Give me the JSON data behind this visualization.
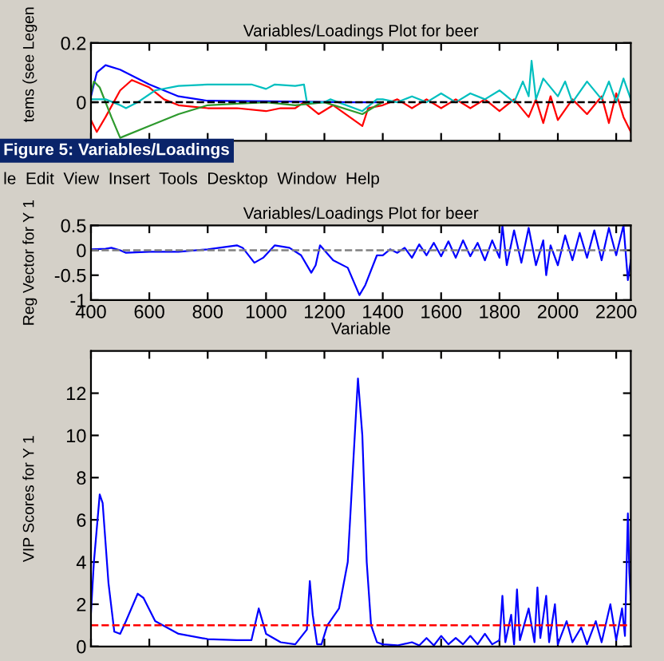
{
  "chart_data": [
    {
      "type": "line",
      "title": "Variables/Loadings Plot for beer",
      "ylabel": "tems (see Legen",
      "xlim": [
        400,
        2250
      ],
      "ylim": [
        -0.13,
        0.2
      ],
      "xticks": [
        {
          "value": 400,
          "label": null
        },
        {
          "value": 600,
          "label": null
        },
        {
          "value": 800,
          "label": null
        },
        {
          "value": 1000,
          "label": null
        },
        {
          "value": 1200,
          "label": null
        },
        {
          "value": 1400,
          "label": null
        },
        {
          "value": 1600,
          "label": null
        },
        {
          "value": 1800,
          "label": null
        },
        {
          "value": 2000,
          "label": null
        },
        {
          "value": 2200,
          "label": null
        }
      ],
      "yticks": [
        0,
        0.2
      ],
      "tick_labels": "y",
      "grid": false,
      "legend": false,
      "ref_lines": [
        {
          "axis": "y",
          "value": 0,
          "color": "#000000",
          "line_style": "dashed"
        }
      ],
      "series": [
        {
          "color": "#0000ff",
          "x": [
            400,
            420,
            450,
            500,
            600,
            700,
            800,
            1000,
            1300,
            1400
          ],
          "values": [
            0.02,
            0.1,
            0.125,
            0.11,
            0.06,
            0.02,
            0.005,
            0.003,
            0,
            0
          ]
        },
        {
          "color": "#ff0000",
          "x": [
            400,
            420,
            450,
            500,
            540,
            600,
            650,
            700,
            800,
            900,
            1000,
            1050,
            1100,
            1130,
            1180,
            1230,
            1330,
            1350,
            1400,
            1450,
            1500,
            1550,
            1600,
            1650,
            1700,
            1750,
            1800,
            1850,
            1900,
            1925,
            1950,
            1975,
            2000,
            2050,
            2100,
            2150,
            2175,
            2200,
            2225,
            2250
          ],
          "values": [
            -0.06,
            -0.1,
            -0.05,
            0.04,
            0.075,
            0.05,
            0.01,
            -0.01,
            -0.02,
            -0.02,
            -0.03,
            -0.02,
            -0.02,
            0,
            -0.04,
            -0.01,
            -0.08,
            -0.02,
            -0.01,
            0.01,
            -0.02,
            0.01,
            -0.02,
            0.01,
            -0.02,
            0.01,
            -0.03,
            0.01,
            -0.05,
            0.01,
            -0.07,
            0.02,
            -0.06,
            0.01,
            -0.04,
            0.02,
            -0.07,
            0.03,
            -0.05,
            -0.1
          ]
        },
        {
          "color": "#2e9a2e",
          "x": [
            400,
            410,
            430,
            470,
            500,
            600,
            700,
            800,
            900,
            1000,
            1100,
            1200,
            1330,
            1380,
            1400
          ],
          "values": [
            0.03,
            0.07,
            0.05,
            -0.05,
            -0.12,
            -0.08,
            -0.04,
            -0.01,
            -0.005,
            0,
            -0.01,
            0,
            -0.04,
            -0.01,
            0
          ]
        },
        {
          "color": "#00bfbf",
          "x": [
            400,
            450,
            500,
            520,
            560,
            620,
            700,
            800,
            900,
            950,
            1000,
            1030,
            1100,
            1130,
            1140,
            1200,
            1220,
            1330,
            1380,
            1400,
            1450,
            1500,
            1550,
            1600,
            1650,
            1700,
            1750,
            1800,
            1850,
            1880,
            1900,
            1910,
            1925,
            1950,
            2000,
            2025,
            2050,
            2100,
            2150,
            2175,
            2200,
            2225,
            2250
          ],
          "values": [
            0.01,
            0.01,
            -0.01,
            -0.02,
            0,
            0.04,
            0.055,
            0.06,
            0.06,
            0.06,
            0.045,
            0.06,
            0.055,
            0.06,
            0,
            0,
            0.01,
            -0.03,
            0.01,
            0.01,
            0,
            0.02,
            0,
            0.03,
            0,
            0.03,
            0.01,
            0.04,
            0,
            0.07,
            0.02,
            0.14,
            0.01,
            0.08,
            0.02,
            0.07,
            0,
            0.07,
            0.01,
            0.07,
            0,
            0.08,
            0.01
          ]
        }
      ]
    },
    {
      "type": "line",
      "title": "Variables/Loadings Plot for beer",
      "xlabel": "Variable",
      "ylabel": "Reg Vector for Y 1",
      "annotations": [
        "Figure 5: Variables/Loadings",
        "le  Edit  View  Insert  Tools  Desktop  Window  Help"
      ],
      "xlim": [
        400,
        2250
      ],
      "ylim": [
        -1,
        0.5
      ],
      "xticks": [
        400,
        600,
        800,
        1000,
        1200,
        1400,
        1600,
        1800,
        2000,
        2200
      ],
      "yticks": [
        -1,
        -0.5,
        0,
        0.5
      ],
      "grid": false,
      "legend": false,
      "ref_lines": [
        {
          "axis": "y",
          "value": 0,
          "color": "#808080",
          "line_style": "dashed"
        }
      ],
      "series": [
        {
          "color": "#0000ff",
          "x": [
            400,
            450,
            470,
            500,
            520,
            600,
            700,
            800,
            900,
            920,
            960,
            990,
            1030,
            1080,
            1120,
            1155,
            1170,
            1185,
            1200,
            1230,
            1280,
            1320,
            1340,
            1380,
            1400,
            1425,
            1450,
            1475,
            1500,
            1525,
            1550,
            1575,
            1600,
            1625,
            1650,
            1675,
            1700,
            1725,
            1750,
            1775,
            1800,
            1810,
            1825,
            1850,
            1875,
            1900,
            1925,
            1950,
            1960,
            1975,
            2000,
            2025,
            2050,
            2075,
            2100,
            2125,
            2150,
            2175,
            2200,
            2225,
            2240,
            2250
          ],
          "values": [
            0.02,
            0.03,
            0.05,
            0,
            -0.05,
            -0.03,
            -0.03,
            0.02,
            0.1,
            0.05,
            -0.25,
            -0.15,
            0.1,
            0.05,
            -0.1,
            -0.45,
            -0.3,
            0.1,
            0,
            -0.2,
            -0.35,
            -0.9,
            -0.7,
            -0.1,
            -0.1,
            0.02,
            -0.05,
            0.05,
            -0.15,
            0.12,
            -0.1,
            0.15,
            -0.12,
            0.18,
            -0.15,
            0.2,
            -0.12,
            0.15,
            -0.2,
            0.2,
            -0.15,
            0.5,
            -0.3,
            0.4,
            -0.25,
            0.45,
            -0.3,
            0.2,
            -0.5,
            0.1,
            -0.3,
            0.3,
            -0.2,
            0.35,
            -0.15,
            0.4,
            -0.2,
            0.45,
            -0.1,
            0.5,
            -0.6,
            -0.2
          ]
        }
      ]
    },
    {
      "type": "line",
      "ylabel": "VIP Scores for Y 1",
      "xlim": [
        400,
        2250
      ],
      "ylim": [
        0,
        14
      ],
      "xticks": [
        {
          "value": 400,
          "label": null
        },
        {
          "value": 600,
          "label": null
        },
        {
          "value": 800,
          "label": null
        },
        {
          "value": 1000,
          "label": null
        },
        {
          "value": 1200,
          "label": null
        },
        {
          "value": 1400,
          "label": null
        },
        {
          "value": 1600,
          "label": null
        },
        {
          "value": 1800,
          "label": null
        },
        {
          "value": 2000,
          "label": null
        },
        {
          "value": 2200,
          "label": null
        }
      ],
      "yticks": [
        0,
        2,
        4,
        6,
        8,
        10,
        12
      ],
      "tick_labels": "y",
      "grid": false,
      "legend": false,
      "ref_lines": [
        {
          "axis": "y",
          "value": 1,
          "color": "#ff0000",
          "line_style": "dashed"
        }
      ],
      "series": [
        {
          "color": "#0000ff",
          "x": [
            400,
            410,
            430,
            440,
            460,
            480,
            500,
            520,
            560,
            580,
            620,
            700,
            800,
            900,
            950,
            975,
            1000,
            1050,
            1100,
            1140,
            1150,
            1160,
            1175,
            1190,
            1210,
            1250,
            1280,
            1300,
            1315,
            1330,
            1345,
            1360,
            1380,
            1400,
            1450,
            1500,
            1525,
            1550,
            1575,
            1600,
            1625,
            1650,
            1675,
            1700,
            1725,
            1750,
            1775,
            1800,
            1810,
            1820,
            1840,
            1850,
            1860,
            1870,
            1900,
            1920,
            1930,
            1940,
            1960,
            1970,
            1990,
            2000,
            2030,
            2050,
            2080,
            2100,
            2130,
            2150,
            2180,
            2200,
            2220,
            2230,
            2240,
            2245,
            2250
          ],
          "values": [
            1.6,
            4,
            7.2,
            6.8,
            3,
            0.7,
            0.6,
            1.2,
            2.5,
            2.3,
            1.2,
            0.6,
            0.35,
            0.3,
            0.3,
            1.8,
            0.6,
            0.2,
            0.1,
            0.8,
            3.1,
            1.5,
            0.1,
            0.1,
            1,
            1.8,
            4,
            9,
            12.7,
            10,
            4,
            1,
            0.2,
            0.1,
            0.05,
            0.2,
            0.05,
            0.4,
            0.05,
            0.5,
            0.1,
            0.4,
            0.1,
            0.5,
            0.1,
            0.6,
            0.1,
            0.3,
            2.4,
            0.2,
            1.5,
            0.1,
            2.7,
            0.3,
            1.8,
            0.2,
            2.8,
            0.4,
            2.4,
            0.2,
            2,
            0.1,
            1.2,
            0.2,
            0.9,
            0.1,
            1.2,
            0.2,
            2,
            0.3,
            1.8,
            0.5,
            6.3,
            3.5,
            2.2
          ]
        }
      ]
    }
  ]
}
